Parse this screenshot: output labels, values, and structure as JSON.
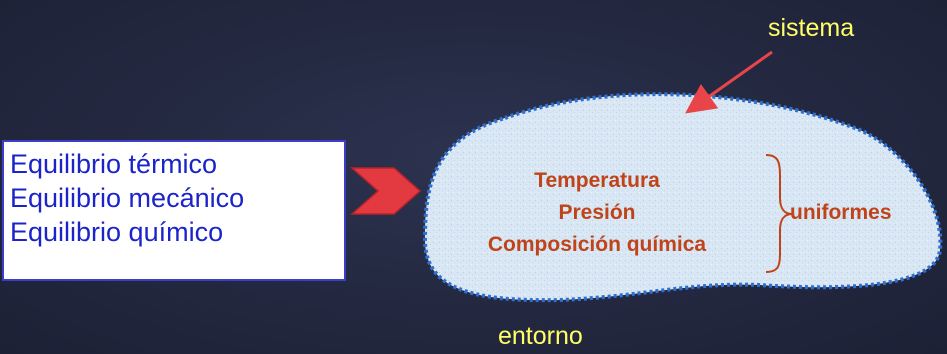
{
  "conditions": {
    "items": [
      "Equilibrio térmico",
      "Equilibrio mecánico",
      "Equilibrio químico"
    ]
  },
  "system": {
    "label": "sistema",
    "properties": [
      "Temperatura",
      "Presión",
      "Composición química"
    ],
    "uniform_label": "uniformes"
  },
  "environment": {
    "label": "entorno"
  },
  "colors": {
    "background": "#232840",
    "box_text": "#1b23c9",
    "box_border": "#3a3ec8",
    "label_yellow": "#ffff66",
    "property_text": "#c0431a",
    "blob_fill": "#d6e6f2",
    "blob_border": "#2f6fd0",
    "arrow_fill": "#e23a40",
    "pointer_arrow": "#e8454a"
  }
}
